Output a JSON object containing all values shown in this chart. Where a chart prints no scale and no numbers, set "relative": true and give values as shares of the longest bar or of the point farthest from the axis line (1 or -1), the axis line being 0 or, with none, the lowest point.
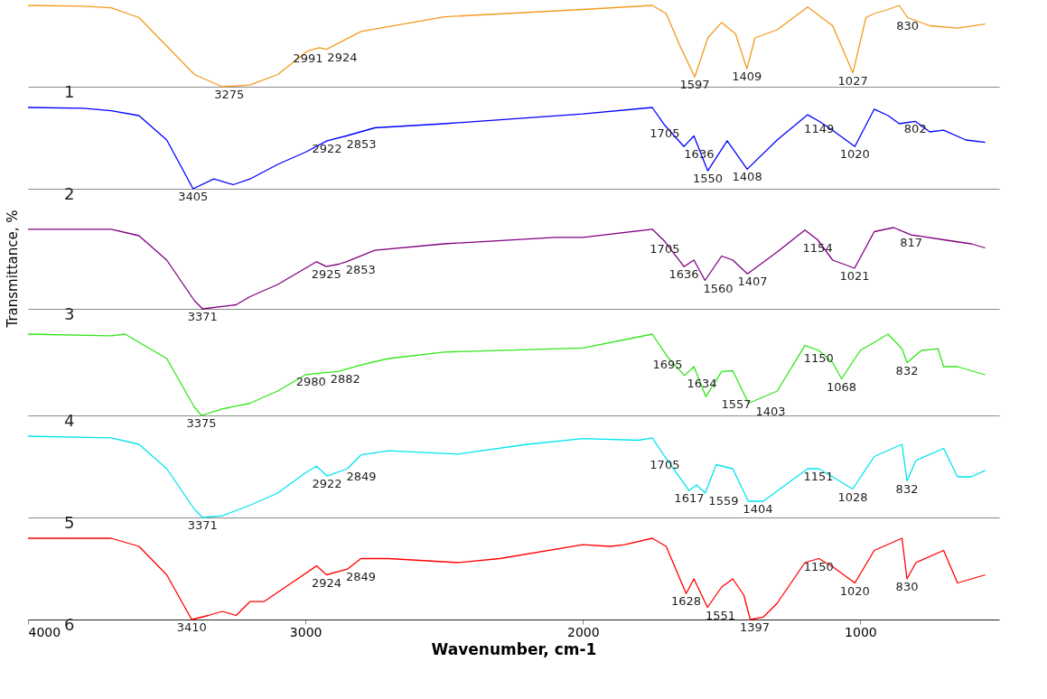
{
  "chart_data": [
    {
      "type": "line",
      "relative": true,
      "xlim": [
        4000,
        500
      ],
      "tick_labels": false,
      "grid": false,
      "legend": false,
      "series": [
        {
          "color": "#f39a1e",
          "x": [
            4000,
            3800,
            3700,
            3600,
            3500,
            3400,
            3300,
            3200,
            3100,
            3000,
            2991,
            2950,
            2924,
            2800,
            2500,
            2000,
            1750,
            1700,
            1650,
            1597,
            1550,
            1500,
            1450,
            1409,
            1380,
            1300,
            1190,
            1100,
            1027,
            980,
            950,
            900,
            860,
            830,
            750,
            650,
            550
          ],
          "values": [
            1.0,
            0.99,
            0.97,
            0.85,
            0.5,
            0.15,
            0.0,
            0.02,
            0.15,
            0.42,
            0.44,
            0.48,
            0.46,
            0.68,
            0.86,
            0.95,
            1.0,
            0.9,
            0.5,
            0.12,
            0.6,
            0.79,
            0.65,
            0.22,
            0.6,
            0.7,
            0.98,
            0.75,
            0.17,
            0.85,
            0.9,
            0.95,
            1.0,
            0.85,
            0.75,
            0.72,
            0.77
          ]
        }
      ],
      "annotations": [
        "1",
        {
          "text": "3275",
          "x": 3275,
          "y": 0.0
        },
        {
          "text": "2991",
          "x": 2991,
          "y": 0.44
        },
        {
          "text": "2924",
          "x": 2924,
          "y": 0.46
        },
        {
          "text": "1597",
          "x": 1597,
          "y": 0.12
        },
        {
          "text": "1409",
          "x": 1409,
          "y": 0.22
        },
        {
          "text": "1027",
          "x": 1027,
          "y": 0.17
        },
        {
          "text": "830",
          "x": 830,
          "y": 0.85
        }
      ]
    },
    {
      "type": "line",
      "relative": true,
      "xlim": [
        4000,
        500
      ],
      "tick_labels": false,
      "grid": false,
      "legend": false,
      "series": [
        {
          "color": "#0000ff",
          "x": [
            4000,
            3800,
            3700,
            3600,
            3500,
            3405,
            3330,
            3260,
            3200,
            3100,
            3000,
            2922,
            2853,
            2750,
            2500,
            2000,
            1750,
            1705,
            1636,
            1600,
            1550,
            1480,
            1408,
            1300,
            1190,
            1149,
            1100,
            1020,
            950,
            900,
            860,
            802,
            750,
            700,
            620,
            550
          ],
          "values": [
            1.0,
            0.99,
            0.96,
            0.9,
            0.6,
            0.0,
            0.12,
            0.05,
            0.12,
            0.3,
            0.45,
            0.59,
            0.65,
            0.75,
            0.8,
            0.92,
            1.0,
            0.78,
            0.52,
            0.65,
            0.22,
            0.59,
            0.24,
            0.6,
            0.91,
            0.83,
            0.72,
            0.52,
            0.98,
            0.9,
            0.8,
            0.83,
            0.7,
            0.72,
            0.6,
            0.57
          ]
        }
      ],
      "annotations": [
        "2",
        {
          "text": "3405",
          "x": 3405,
          "y": 0.0
        },
        {
          "text": "2922",
          "x": 2922,
          "y": 0.59
        },
        {
          "text": "2853",
          "x": 2853,
          "y": 0.65
        },
        {
          "text": "1705",
          "x": 1705,
          "y": 0.78
        },
        {
          "text": "1636",
          "x": 1636,
          "y": 0.52
        },
        {
          "text": "1550",
          "x": 1550,
          "y": 0.22
        },
        {
          "text": "1408",
          "x": 1408,
          "y": 0.24
        },
        {
          "text": "1149",
          "x": 1149,
          "y": 0.83
        },
        {
          "text": "1020",
          "x": 1020,
          "y": 0.52
        },
        {
          "text": "802",
          "x": 802,
          "y": 0.83
        }
      ]
    },
    {
      "type": "line",
      "relative": true,
      "xlim": [
        4000,
        500
      ],
      "tick_labels": false,
      "grid": false,
      "legend": false,
      "ylabel": "Transmittance, %",
      "series": [
        {
          "color": "#800080",
          "x": [
            4000,
            3700,
            3600,
            3500,
            3400,
            3371,
            3300,
            3250,
            3200,
            3100,
            3000,
            2960,
            2925,
            2880,
            2853,
            2750,
            2500,
            2100,
            2000,
            1750,
            1705,
            1636,
            1600,
            1560,
            1500,
            1460,
            1407,
            1300,
            1200,
            1154,
            1100,
            1021,
            950,
            880,
            817,
            700,
            600,
            550
          ],
          "values": [
            0.98,
            0.98,
            0.9,
            0.6,
            0.1,
            0.0,
            0.03,
            0.05,
            0.15,
            0.3,
            0.5,
            0.58,
            0.52,
            0.55,
            0.58,
            0.72,
            0.8,
            0.88,
            0.88,
            0.98,
            0.83,
            0.52,
            0.6,
            0.35,
            0.65,
            0.6,
            0.43,
            0.7,
            0.97,
            0.85,
            0.6,
            0.5,
            0.95,
            1.0,
            0.91,
            0.85,
            0.8,
            0.75
          ]
        }
      ],
      "annotations": [
        "3",
        {
          "text": "3371",
          "x": 3371,
          "y": 0.0
        },
        {
          "text": "2925",
          "x": 2925,
          "y": 0.52
        },
        {
          "text": "2853",
          "x": 2853,
          "y": 0.58
        },
        {
          "text": "1705",
          "x": 1705,
          "y": 0.83
        },
        {
          "text": "1636",
          "x": 1636,
          "y": 0.52
        },
        {
          "text": "1560",
          "x": 1560,
          "y": 0.35
        },
        {
          "text": "1407",
          "x": 1407,
          "y": 0.43
        },
        {
          "text": "1154",
          "x": 1154,
          "y": 0.85
        },
        {
          "text": "1021",
          "x": 1021,
          "y": 0.5
        },
        {
          "text": "817",
          "x": 817,
          "y": 0.91
        }
      ]
    },
    {
      "type": "line",
      "relative": true,
      "xlim": [
        4000,
        500
      ],
      "tick_labels": false,
      "grid": false,
      "legend": false,
      "series": [
        {
          "color": "#33e61a",
          "x": [
            4000,
            3700,
            3650,
            3600,
            3500,
            3400,
            3375,
            3300,
            3200,
            3100,
            3000,
            2980,
            2882,
            2800,
            2700,
            2500,
            2000,
            1750,
            1695,
            1634,
            1600,
            1557,
            1500,
            1460,
            1403,
            1300,
            1200,
            1150,
            1100,
            1068,
            1000,
            900,
            850,
            832,
            780,
            720,
            700,
            650,
            550
          ],
          "values": [
            1.0,
            0.98,
            1.0,
            0.9,
            0.7,
            0.1,
            0.0,
            0.08,
            0.15,
            0.3,
            0.5,
            0.51,
            0.54,
            0.62,
            0.7,
            0.78,
            0.83,
            1.0,
            0.72,
            0.49,
            0.6,
            0.23,
            0.54,
            0.55,
            0.15,
            0.3,
            0.86,
            0.8,
            0.65,
            0.45,
            0.8,
            1.0,
            0.82,
            0.65,
            0.8,
            0.82,
            0.6,
            0.6,
            0.5
          ]
        }
      ],
      "annotations": [
        "4",
        {
          "text": "3375",
          "x": 3375,
          "y": 0.0
        },
        {
          "text": "2980",
          "x": 2980,
          "y": 0.51
        },
        {
          "text": "2882",
          "x": 2882,
          "y": 0.54
        },
        {
          "text": "1695",
          "x": 1695,
          "y": 0.72
        },
        {
          "text": "1634",
          "x": 1634,
          "y": 0.49
        },
        {
          "text": "1557",
          "x": 1557,
          "y": 0.23
        },
        {
          "text": "1403",
          "x": 1403,
          "y": 0.15
        },
        {
          "text": "1150",
          "x": 1150,
          "y": 0.8
        },
        {
          "text": "1068",
          "x": 1068,
          "y": 0.45
        },
        {
          "text": "832",
          "x": 832,
          "y": 0.65
        }
      ]
    },
    {
      "type": "line",
      "relative": true,
      "xlim": [
        4000,
        500
      ],
      "tick_labels": false,
      "grid": false,
      "legend": false,
      "series": [
        {
          "color": "#00e5ee",
          "x": [
            4000,
            3700,
            3600,
            3500,
            3400,
            3371,
            3300,
            3200,
            3100,
            3000,
            2960,
            2922,
            2849,
            2800,
            2700,
            2450,
            2200,
            2000,
            1800,
            1750,
            1705,
            1617,
            1590,
            1559,
            1520,
            1460,
            1404,
            1350,
            1250,
            1190,
            1151,
            1100,
            1028,
            950,
            850,
            832,
            800,
            700,
            650,
            600,
            550
          ],
          "values": [
            1.0,
            0.98,
            0.9,
            0.6,
            0.1,
            0.0,
            0.02,
            0.15,
            0.3,
            0.55,
            0.63,
            0.51,
            0.6,
            0.77,
            0.82,
            0.78,
            0.9,
            0.97,
            0.95,
            0.98,
            0.75,
            0.33,
            0.4,
            0.3,
            0.65,
            0.6,
            0.2,
            0.2,
            0.45,
            0.6,
            0.6,
            0.5,
            0.35,
            0.75,
            0.9,
            0.45,
            0.7,
            0.85,
            0.5,
            0.5,
            0.58
          ]
        }
      ],
      "annotations": [
        "5",
        {
          "text": "3371",
          "x": 3371,
          "y": 0.0
        },
        {
          "text": "2922",
          "x": 2922,
          "y": 0.51
        },
        {
          "text": "2849",
          "x": 2849,
          "y": 0.6
        },
        {
          "text": "1705",
          "x": 1705,
          "y": 0.75
        },
        {
          "text": "1617",
          "x": 1617,
          "y": 0.33
        },
        {
          "text": "1559",
          "x": 1559,
          "y": 0.3
        },
        {
          "text": "1404",
          "x": 1404,
          "y": 0.2
        },
        {
          "text": "1151",
          "x": 1151,
          "y": 0.6
        },
        {
          "text": "1028",
          "x": 1028,
          "y": 0.35
        },
        {
          "text": "832",
          "x": 832,
          "y": 0.45
        }
      ]
    },
    {
      "type": "line",
      "relative": true,
      "xlim": [
        4000,
        500
      ],
      "xticks": [
        4000,
        3000,
        2000,
        1000
      ],
      "tick_labels": "x",
      "grid": false,
      "legend": false,
      "xlabel": "Wavenumber, cm-1",
      "series": [
        {
          "color": "#ff0000",
          "x": [
            4000,
            3700,
            3600,
            3500,
            3410,
            3350,
            3300,
            3250,
            3200,
            3150,
            3050,
            2960,
            2924,
            2849,
            2800,
            2700,
            2450,
            2300,
            2000,
            1900,
            1850,
            1750,
            1700,
            1628,
            1600,
            1551,
            1500,
            1460,
            1420,
            1397,
            1350,
            1300,
            1200,
            1150,
            1100,
            1020,
            950,
            850,
            832,
            800,
            700,
            650,
            600,
            550
          ],
          "values": [
            1.0,
            1.0,
            0.9,
            0.55,
            0.0,
            0.05,
            0.1,
            0.05,
            0.22,
            0.22,
            0.45,
            0.66,
            0.55,
            0.62,
            0.75,
            0.75,
            0.7,
            0.75,
            0.92,
            0.9,
            0.92,
            1.0,
            0.9,
            0.32,
            0.5,
            0.15,
            0.4,
            0.5,
            0.3,
            0.0,
            0.03,
            0.2,
            0.7,
            0.75,
            0.65,
            0.45,
            0.85,
            1.0,
            0.5,
            0.7,
            0.85,
            0.45,
            0.5,
            0.55
          ]
        }
      ],
      "annotations": [
        "6",
        {
          "text": "3410",
          "x": 3410,
          "y": 0.0
        },
        {
          "text": "2924",
          "x": 2924,
          "y": 0.55
        },
        {
          "text": "2849",
          "x": 2849,
          "y": 0.62
        },
        {
          "text": "1628",
          "x": 1628,
          "y": 0.32
        },
        {
          "text": "1551",
          "x": 1551,
          "y": 0.15
        },
        {
          "text": "1397",
          "x": 1397,
          "y": 0.0
        },
        {
          "text": "1150",
          "x": 1150,
          "y": 0.75
        },
        {
          "text": "1020",
          "x": 1020,
          "y": 0.45
        },
        {
          "text": "830",
          "x": 832,
          "y": 0.5
        }
      ]
    }
  ]
}
